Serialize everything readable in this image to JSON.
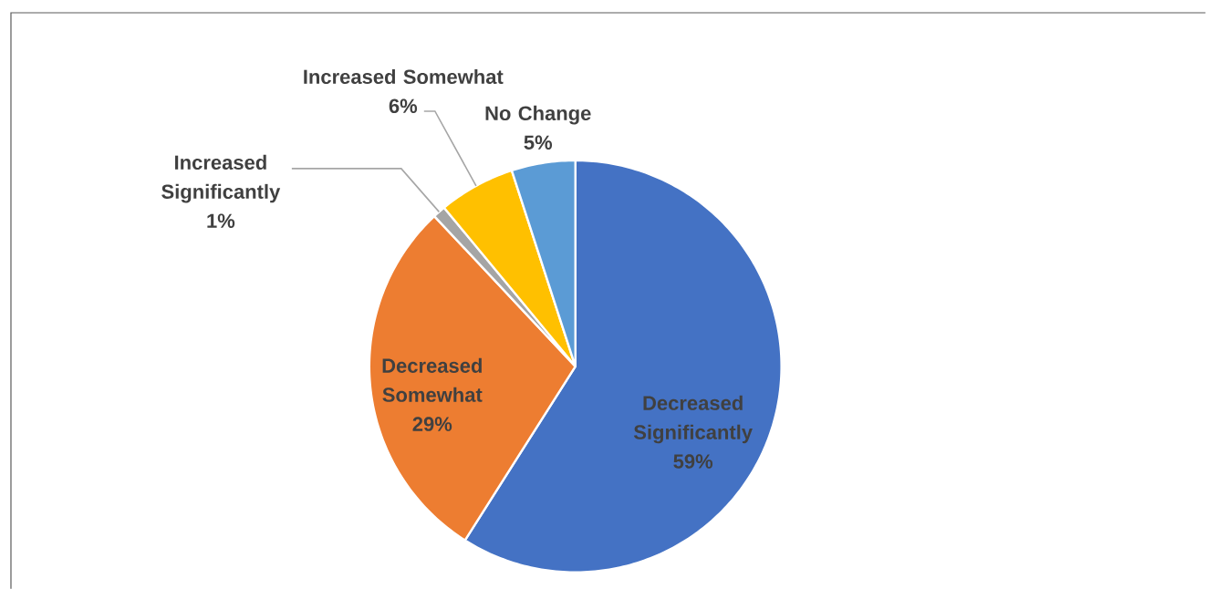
{
  "chart_data": {
    "type": "pie",
    "categories": [
      "Decreased Significantly",
      "Decreased Somewhat",
      "Increased Significantly",
      "Increased Somewhat",
      "No Change"
    ],
    "values": [
      59,
      29,
      1,
      6,
      5
    ],
    "value_labels": [
      "59%",
      "29%",
      "1%",
      "6%",
      "5%"
    ],
    "colors": [
      "#4472c4",
      "#ed7d31",
      "#a5a5a5",
      "#ffc000",
      "#5b9bd5"
    ]
  }
}
